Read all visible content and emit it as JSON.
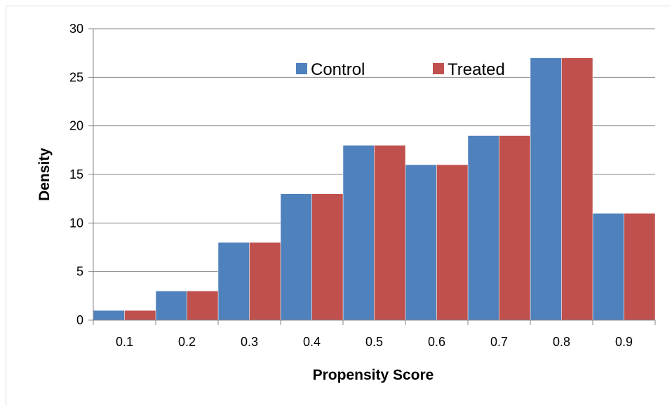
{
  "chart_data": {
    "type": "bar",
    "categories": [
      "0.1",
      "0.2",
      "0.3",
      "0.4",
      "0.5",
      "0.6",
      "0.7",
      "0.8",
      "0.9"
    ],
    "series": [
      {
        "name": "Control",
        "color": "#4f81bd",
        "values": [
          1,
          3,
          8,
          13,
          18,
          16,
          19,
          27,
          11
        ]
      },
      {
        "name": "Treated",
        "color": "#c0504d",
        "values": [
          1,
          3,
          8,
          13,
          18,
          16,
          19,
          27,
          11
        ]
      }
    ],
    "xlabel": "Propensity Score",
    "ylabel": "Density",
    "ylim": [
      0,
      30
    ],
    "yticks": [
      "0",
      "5",
      "10",
      "15",
      "20",
      "25",
      "30"
    ],
    "grid": true,
    "legend_position": "top-center"
  }
}
